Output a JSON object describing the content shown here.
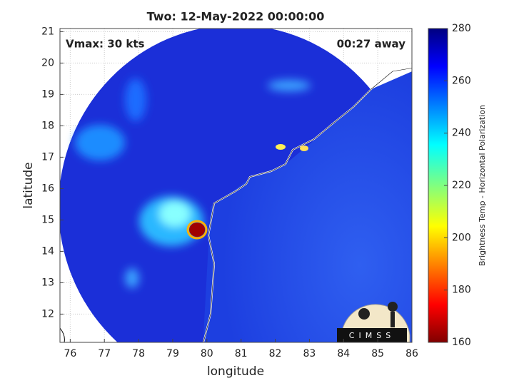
{
  "chart_data": {
    "type": "map",
    "title": "Two: 12-May-2022 00:00:00",
    "xlabel": "longitude",
    "ylabel": "latitude",
    "xlim": [
      75.7,
      86.0
    ],
    "ylim": [
      11.1,
      21.1
    ],
    "xticks": [
      76,
      77,
      78,
      79,
      80,
      81,
      82,
      83,
      84,
      85,
      86
    ],
    "yticks": [
      12,
      13,
      14,
      15,
      16,
      17,
      18,
      19,
      20,
      21
    ],
    "grid": true,
    "annotations": [
      "Vmax: 30 kts",
      "00:27 away"
    ],
    "logo_text": "CIMSS",
    "colorbar": {
      "label": "Brightness Temp - Horizontal Polarization",
      "colormap": "jet",
      "lim": [
        160,
        280
      ],
      "ticks": [
        160,
        180,
        200,
        220,
        240,
        260,
        280
      ]
    }
  }
}
